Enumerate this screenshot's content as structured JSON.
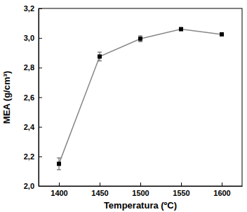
{
  "chart_data": {
    "type": "line",
    "x_label": "Temperatura (ºC)",
    "y_label": "MEA (g/cm³)",
    "x": [
      1400,
      1450,
      1500,
      1550,
      1600
    ],
    "values": [
      2.15,
      2.875,
      2.995,
      3.06,
      3.025
    ],
    "errors": [
      0.04,
      0.03,
      0.02,
      0.01,
      0.01
    ],
    "color": "#888888",
    "marker": "square",
    "xlim": [
      1375,
      1625
    ],
    "xticks": [
      1400,
      1450,
      1500,
      1550,
      1600
    ],
    "ylim": [
      2.0,
      3.2
    ],
    "yticks": [
      {
        "value": 2.0,
        "label": "2,0"
      },
      {
        "value": 2.2,
        "label": "2,2"
      },
      {
        "value": 2.4,
        "label": "2,4"
      },
      {
        "value": 2.6,
        "label": "2,6"
      },
      {
        "value": 2.8,
        "label": "2,8"
      },
      {
        "value": 3.0,
        "label": "3,0"
      },
      {
        "value": 3.2,
        "label": "3,2"
      }
    ],
    "grid": false
  }
}
